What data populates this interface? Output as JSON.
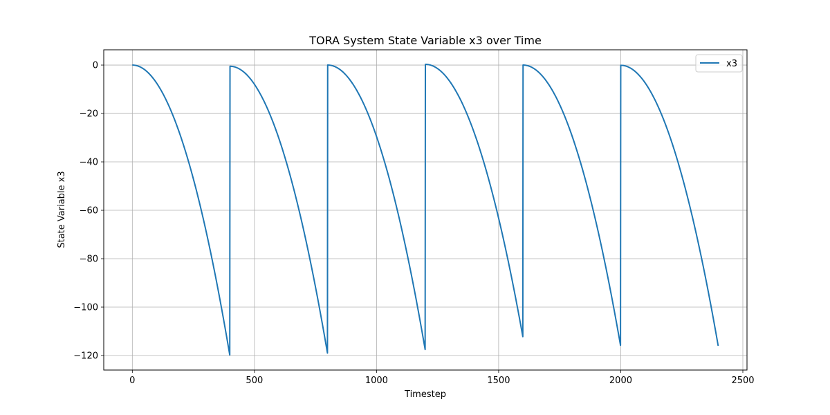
{
  "chart_data": {
    "type": "line",
    "title": "TORA System State Variable x3 over Time",
    "xlabel": "Timestep",
    "ylabel": "State Variable x3",
    "xlim": [
      -117,
      2517
    ],
    "ylim": [
      -126,
      6.3
    ],
    "xticks": [
      0,
      500,
      1000,
      1500,
      2000,
      2500
    ],
    "yticks": [
      0,
      -20,
      -40,
      -60,
      -80,
      -100,
      -120
    ],
    "xtick_labels": [
      "0",
      "500",
      "1000",
      "1500",
      "2000",
      "2500"
    ],
    "ytick_labels": [
      "0",
      "−20",
      "−40",
      "−60",
      "−80",
      "−100",
      "−120"
    ],
    "grid": true,
    "legend_position": "top-right",
    "line_color": "#1f77b4",
    "series": [
      {
        "name": "x3",
        "segments": [
          {
            "x_start": 0,
            "x_end": 399,
            "y_start": 0.0,
            "y_end": -119.8
          },
          {
            "x_start": 400,
            "x_end": 799,
            "y_start": -0.5,
            "y_end": -119.0
          },
          {
            "x_start": 800,
            "x_end": 1199,
            "y_start": 0.0,
            "y_end": -117.5
          },
          {
            "x_start": 1200,
            "x_end": 1599,
            "y_start": 0.3,
            "y_end": -112.2
          },
          {
            "x_start": 1600,
            "x_end": 1999,
            "y_start": 0.0,
            "y_end": -115.8
          },
          {
            "x_start": 2000,
            "x_end": 2399,
            "y_start": -0.1,
            "y_end": -116.0
          }
        ]
      }
    ]
  }
}
